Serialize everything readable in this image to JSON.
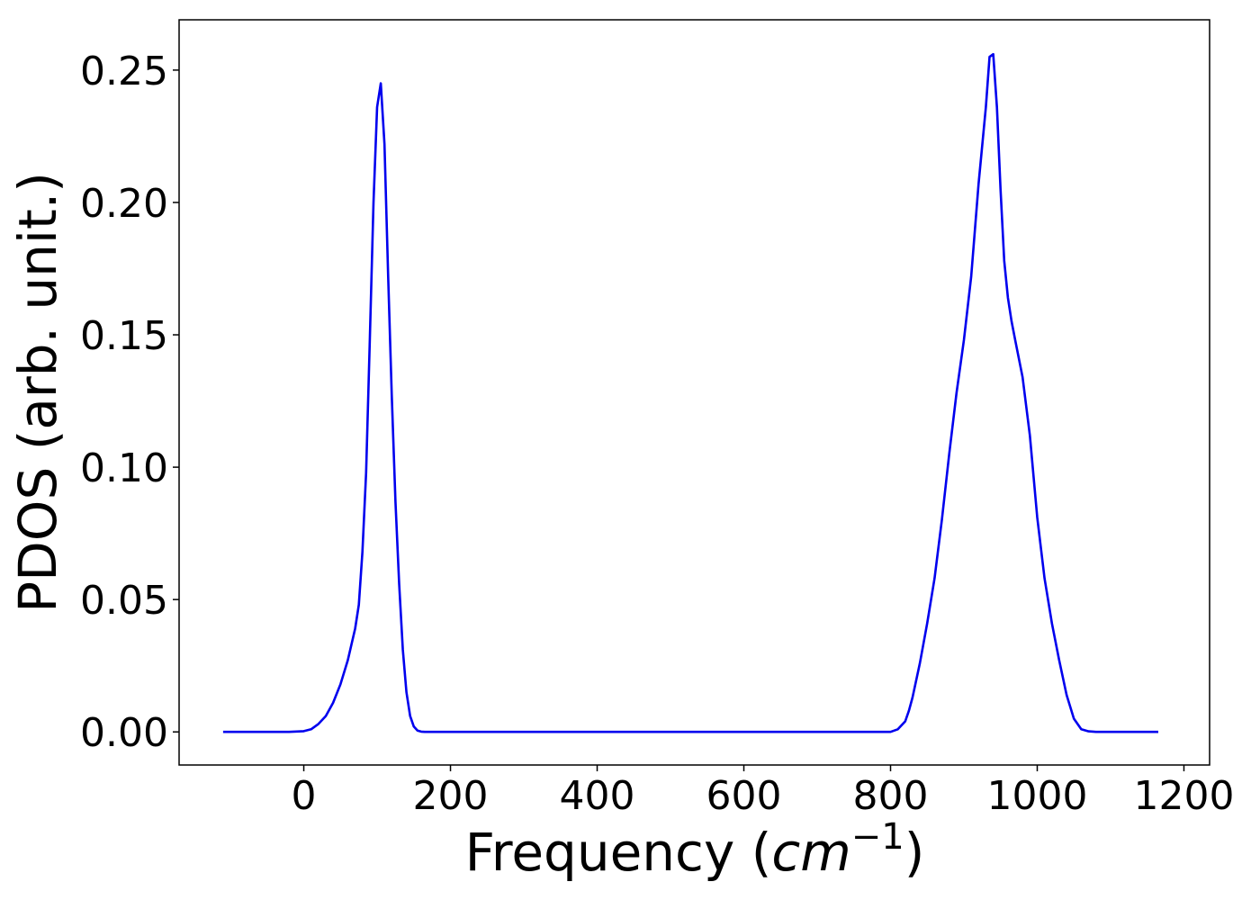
{
  "chart_data": {
    "type": "line",
    "title": "",
    "xlabel": {
      "prefix": "Frequency (",
      "unit_base": "cm",
      "unit_exponent": "−1",
      "suffix": ")"
    },
    "ylabel": "PDOS (arb. unit.)",
    "xlim": [
      -170,
      1235
    ],
    "ylim": [
      -0.0125,
      0.269
    ],
    "xticks": [
      0,
      200,
      400,
      600,
      800,
      1000,
      1200
    ],
    "xtick_labels": [
      "0",
      "200",
      "400",
      "600",
      "800",
      "1000",
      "1200"
    ],
    "yticks": [
      0.0,
      0.05,
      0.1,
      0.15,
      0.2,
      0.25
    ],
    "ytick_labels": [
      "0.00",
      "0.05",
      "0.10",
      "0.15",
      "0.20",
      "0.25"
    ],
    "grid": false,
    "line_color": "#0000ee",
    "series": [
      {
        "x": [
          -110,
          -60,
          -20,
          0,
          10,
          20,
          30,
          40,
          50,
          60,
          70,
          75,
          80,
          85,
          90,
          95,
          100,
          105,
          110,
          115,
          120,
          125,
          130,
          135,
          140,
          145,
          150,
          155,
          160,
          165,
          170,
          175,
          180,
          190,
          220,
          400,
          600,
          800,
          810,
          820,
          825,
          830,
          840,
          850,
          860,
          870,
          880,
          890,
          900,
          910,
          920,
          930,
          935,
          940,
          945,
          950,
          955,
          960,
          965,
          970,
          980,
          990,
          1000,
          1010,
          1020,
          1030,
          1040,
          1050,
          1060,
          1070,
          1080,
          1090,
          1100,
          1130,
          1165
        ],
        "y": [
          0.0,
          0.0,
          0.0,
          0.0003,
          0.001,
          0.003,
          0.006,
          0.011,
          0.018,
          0.027,
          0.039,
          0.048,
          0.068,
          0.098,
          0.148,
          0.2,
          0.236,
          0.245,
          0.222,
          0.172,
          0.127,
          0.087,
          0.056,
          0.031,
          0.015,
          0.006,
          0.002,
          0.0005,
          0.0001,
          0.0,
          0.0,
          0.0,
          0.0,
          0.0,
          0.0,
          0.0,
          0.0,
          0.0,
          0.001,
          0.004,
          0.008,
          0.013,
          0.026,
          0.041,
          0.058,
          0.08,
          0.105,
          0.128,
          0.148,
          0.172,
          0.207,
          0.236,
          0.255,
          0.256,
          0.236,
          0.205,
          0.178,
          0.164,
          0.155,
          0.148,
          0.134,
          0.112,
          0.081,
          0.058,
          0.041,
          0.027,
          0.014,
          0.005,
          0.001,
          0.0002,
          0.0,
          0.0,
          0.0,
          0.0,
          0.0
        ]
      }
    ]
  }
}
